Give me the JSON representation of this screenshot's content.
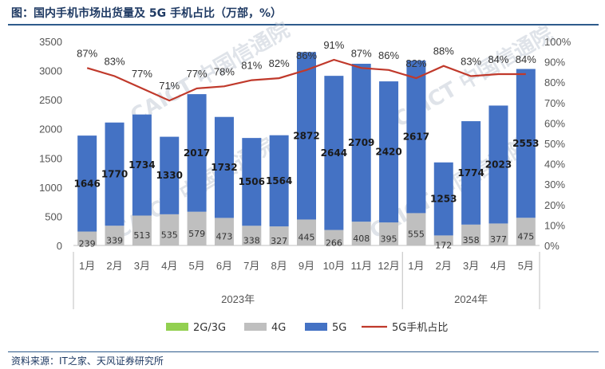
{
  "title": "图：国内手机市场出货量及 5G 手机占比（万部，%）",
  "source": "资料来源：IT之家、天风证券研究所",
  "watermark": "CAICT 中国信通院",
  "colors": {
    "g5": "#4472c4",
    "g4": "#bfbfbf",
    "g23": "#92d050",
    "line": "#c0392b"
  },
  "chart_data": {
    "type": "bar",
    "categories": [
      "1月",
      "2月",
      "3月",
      "4月",
      "5月",
      "6月",
      "7月",
      "8月",
      "9月",
      "10月",
      "11月",
      "12月",
      "1月",
      "2月",
      "3月",
      "4月",
      "5月"
    ],
    "groups": [
      {
        "label": "2023年",
        "count": 12
      },
      {
        "label": "2024年",
        "count": 5
      }
    ],
    "series": [
      {
        "name": "2G/3G",
        "values": [
          0,
          0,
          0,
          0,
          0,
          0,
          0,
          0,
          0,
          0,
          0,
          0,
          0,
          0,
          0,
          0,
          0
        ]
      },
      {
        "name": "4G",
        "values": [
          239,
          339,
          513,
          535,
          579,
          473,
          338,
          327,
          445,
          266,
          408,
          395,
          555,
          172,
          358,
          377,
          475
        ]
      },
      {
        "name": "5G",
        "values": [
          1646,
          1770,
          1734,
          1330,
          2017,
          1732,
          1506,
          1564,
          2872,
          2644,
          2709,
          2420,
          2617,
          1253,
          1774,
          2023,
          2553
        ]
      },
      {
        "name": "5G手机占比",
        "axis": "right",
        "values": [
          87,
          83,
          77,
          71,
          77,
          78,
          81,
          82,
          86,
          91,
          87,
          86,
          82,
          88,
          83,
          84,
          84
        ]
      }
    ],
    "ylim": [
      0,
      3500
    ],
    "y_ticks": [
      "0",
      "500",
      "1000",
      "1500",
      "2000",
      "2500",
      "3000",
      "3500"
    ],
    "y2lim": [
      0,
      100
    ],
    "y2_ticks": [
      "0%",
      "10%",
      "20%",
      "30%",
      "40%",
      "50%",
      "60%",
      "70%",
      "80%",
      "90%",
      "100%"
    ],
    "legend_position": "bottom"
  }
}
